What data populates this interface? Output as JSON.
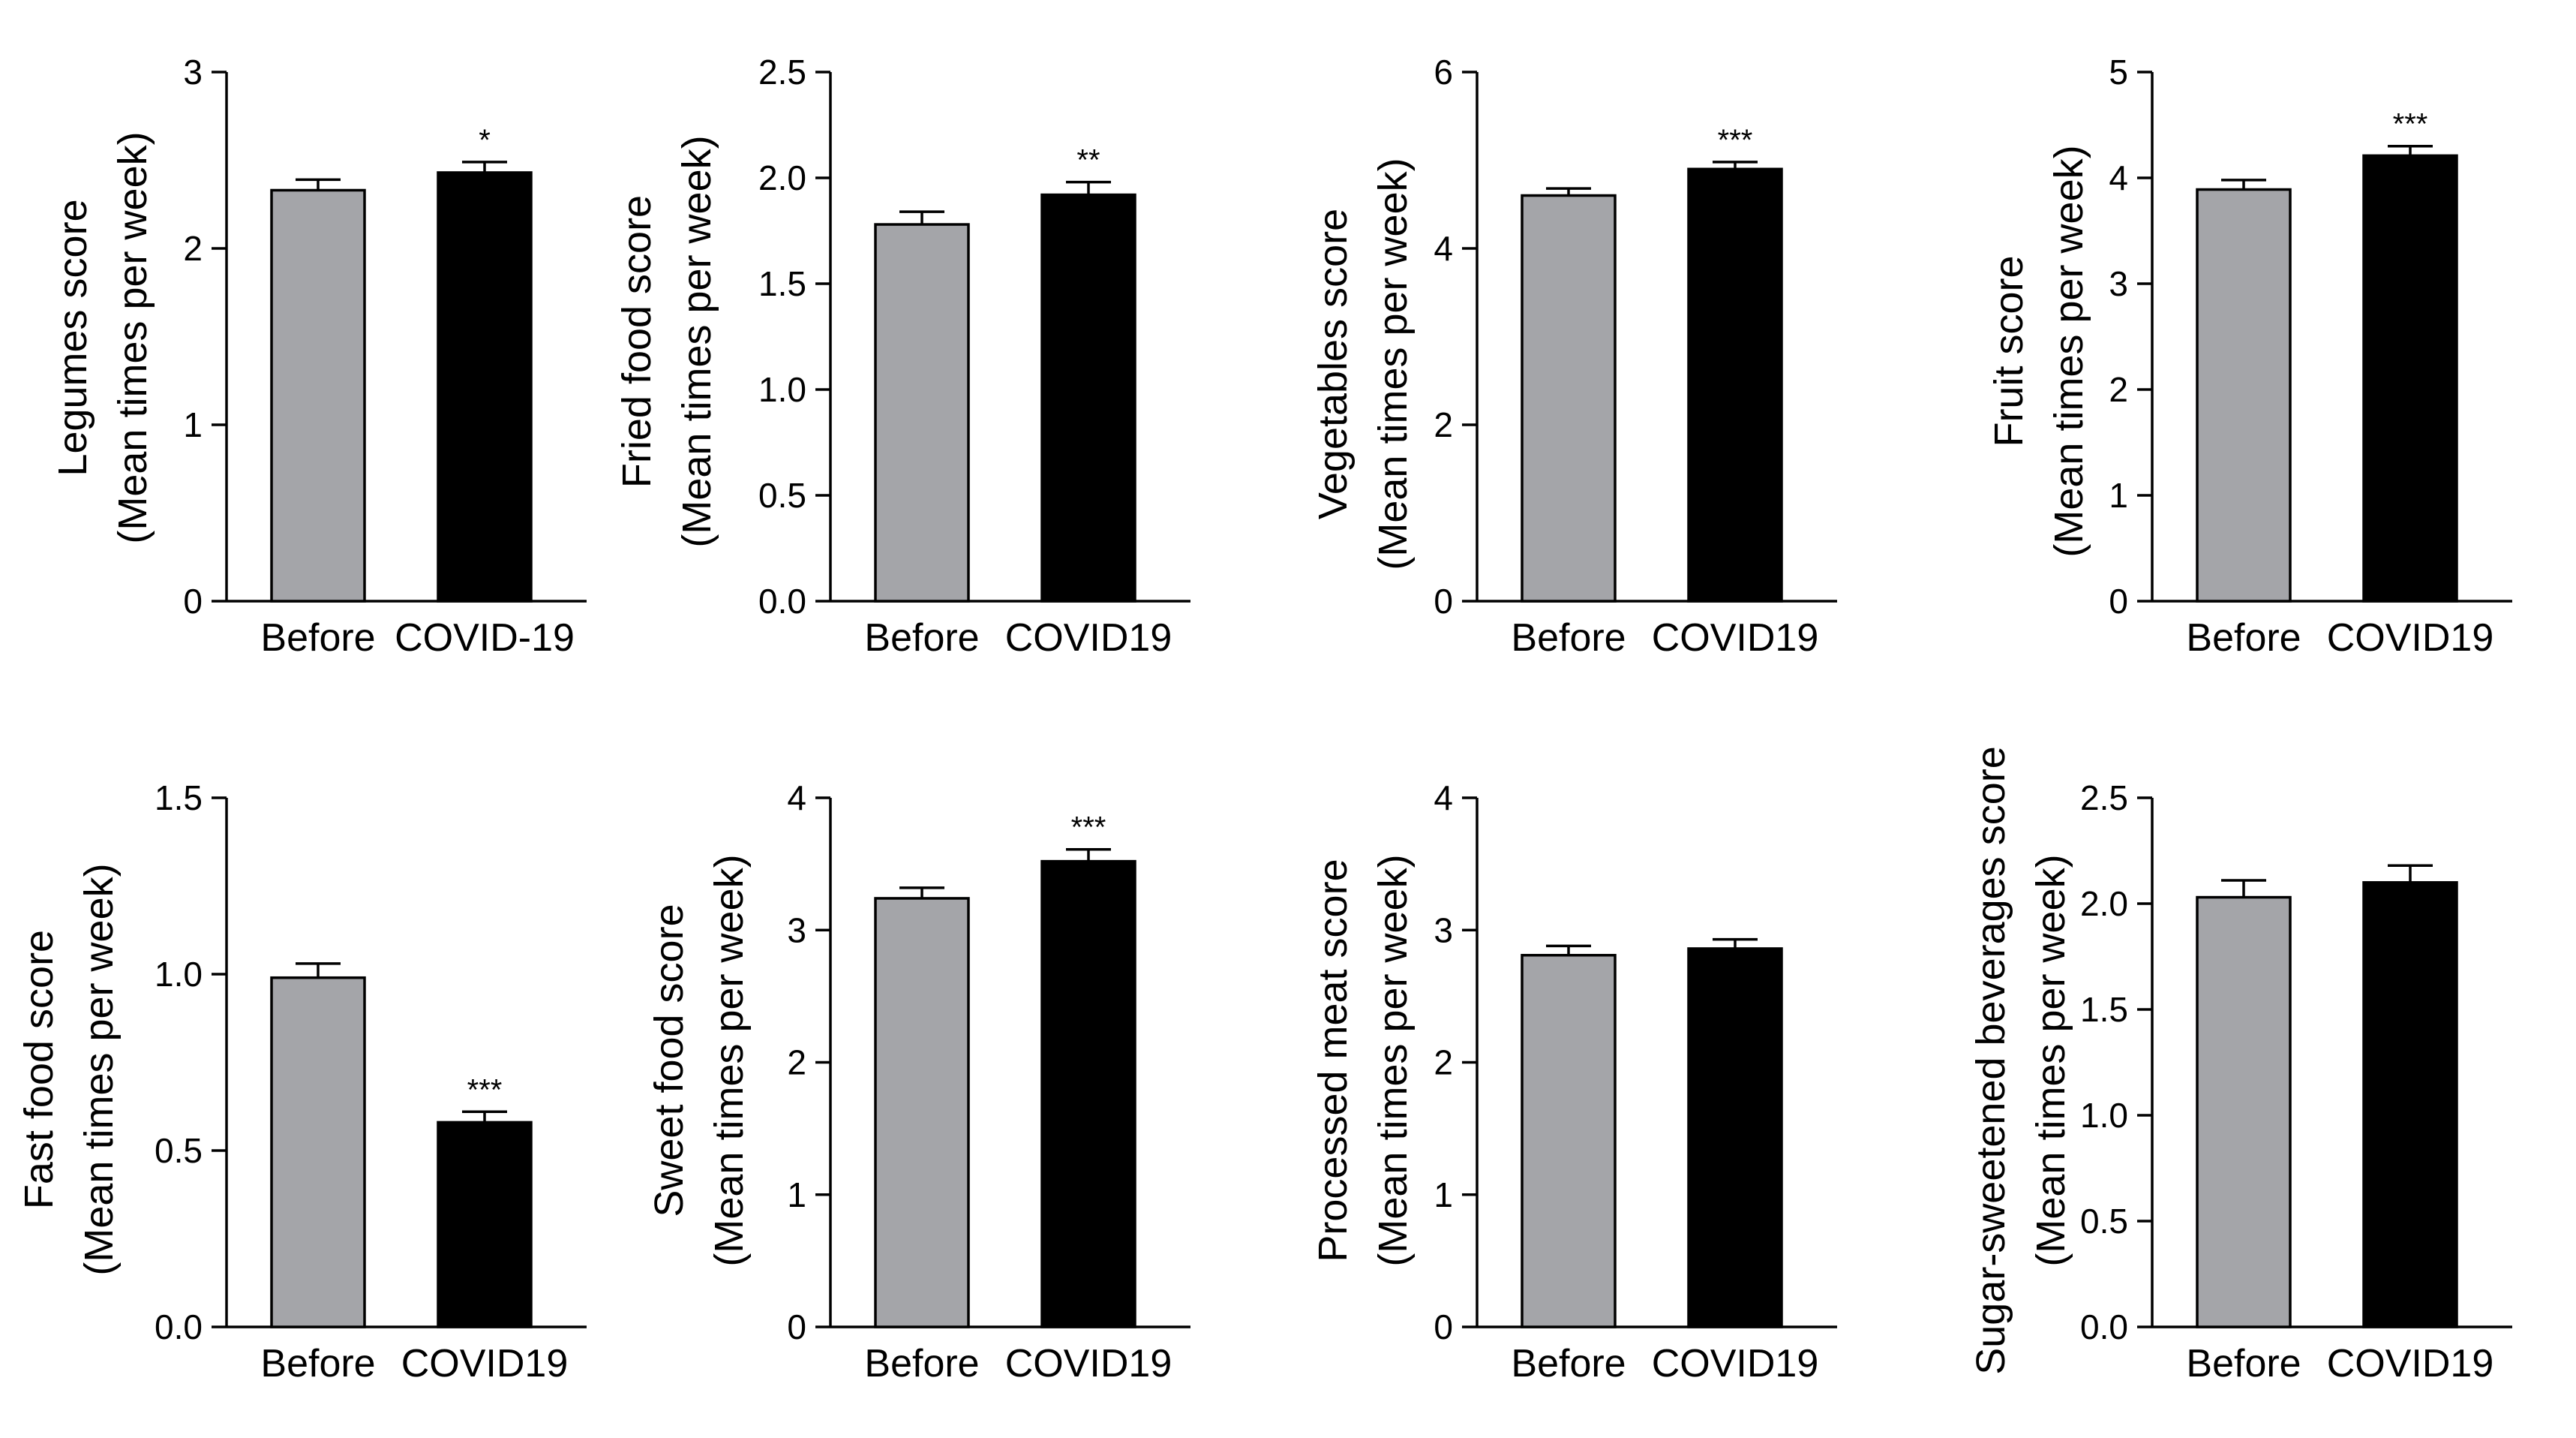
{
  "colors": {
    "before": "#a4a5a9",
    "covid": "#000000",
    "axis": "#000000"
  },
  "chart_data": [
    {
      "type": "bar",
      "ylabel_line1": "Legumes score",
      "ylabel_line2": "(Mean times per week)",
      "categories": [
        "Before",
        "COVID-19"
      ],
      "values": [
        2.33,
        2.43
      ],
      "errors": [
        0.06,
        0.06
      ],
      "significance": [
        "",
        "*"
      ],
      "ylim": [
        0,
        3
      ],
      "yticks": [
        0,
        1,
        2,
        3
      ],
      "ytick_labels": [
        "0",
        "1",
        "2",
        "3"
      ]
    },
    {
      "type": "bar",
      "ylabel_line1": "Fried food score",
      "ylabel_line2": "(Mean times per week)",
      "categories": [
        "Before",
        "COVID19"
      ],
      "values": [
        1.78,
        1.92
      ],
      "errors": [
        0.06,
        0.06
      ],
      "significance": [
        "",
        "**"
      ],
      "ylim": [
        0,
        2.5
      ],
      "yticks": [
        0,
        0.5,
        1.0,
        1.5,
        2.0,
        2.5
      ],
      "ytick_labels": [
        "0.0",
        "0.5",
        "1.0",
        "1.5",
        "2.0",
        "2.5"
      ]
    },
    {
      "type": "bar",
      "ylabel_line1": "Vegetables score",
      "ylabel_line2": "(Mean times per week)",
      "categories": [
        "Before",
        "COVID19"
      ],
      "values": [
        4.6,
        4.9
      ],
      "errors": [
        0.08,
        0.08
      ],
      "significance": [
        "",
        "***"
      ],
      "ylim": [
        0,
        6
      ],
      "yticks": [
        0,
        2,
        4,
        6
      ],
      "ytick_labels": [
        "0",
        "2",
        "4",
        "6"
      ]
    },
    {
      "type": "bar",
      "ylabel_line1": "Fruit score",
      "ylabel_line2": "(Mean times per week)",
      "categories": [
        "Before",
        "COVID19"
      ],
      "values": [
        3.89,
        4.21
      ],
      "errors": [
        0.09,
        0.09
      ],
      "significance": [
        "",
        "***"
      ],
      "ylim": [
        0,
        5
      ],
      "yticks": [
        0,
        1,
        2,
        3,
        4,
        5
      ],
      "ytick_labels": [
        "0",
        "1",
        "2",
        "3",
        "4",
        "5"
      ]
    },
    {
      "type": "bar",
      "ylabel_line1": "Fast food score",
      "ylabel_line2": "(Mean times per week)",
      "categories": [
        "Before",
        "COVID19"
      ],
      "values": [
        0.99,
        0.58
      ],
      "errors": [
        0.04,
        0.03
      ],
      "significance": [
        "",
        "***"
      ],
      "ylim": [
        0,
        1.5
      ],
      "yticks": [
        0,
        0.5,
        1.0,
        1.5
      ],
      "ytick_labels": [
        "0.0",
        "0.5",
        "1.0",
        "1.5"
      ]
    },
    {
      "type": "bar",
      "ylabel_line1": "Sweet food score",
      "ylabel_line2": "(Mean times per week)",
      "categories": [
        "Before",
        "COVID19"
      ],
      "values": [
        3.24,
        3.52
      ],
      "errors": [
        0.08,
        0.09
      ],
      "significance": [
        "",
        "***"
      ],
      "ylim": [
        0,
        4
      ],
      "yticks": [
        0,
        1,
        2,
        3,
        4
      ],
      "ytick_labels": [
        "0",
        "1",
        "2",
        "3",
        "4"
      ]
    },
    {
      "type": "bar",
      "ylabel_line1": "Processed meat score",
      "ylabel_line2": "(Mean times per week)",
      "categories": [
        "Before",
        "COVID19"
      ],
      "values": [
        2.81,
        2.86
      ],
      "errors": [
        0.07,
        0.07
      ],
      "significance": [
        "",
        ""
      ],
      "ylim": [
        0,
        4
      ],
      "yticks": [
        0,
        1,
        2,
        3,
        4
      ],
      "ytick_labels": [
        "0",
        "1",
        "2",
        "3",
        "4"
      ]
    },
    {
      "type": "bar",
      "ylabel_line1": "Sugar-sweetened beverages score",
      "ylabel_line2": "(Mean times per week)",
      "categories": [
        "Before",
        "COVID19"
      ],
      "values": [
        2.03,
        2.1
      ],
      "errors": [
        0.08,
        0.08
      ],
      "significance": [
        "",
        ""
      ],
      "ylim": [
        0,
        2.5
      ],
      "yticks": [
        0,
        0.5,
        1.0,
        1.5,
        2.0,
        2.5
      ],
      "ytick_labels": [
        "0.0",
        "0.5",
        "1.0",
        "1.5",
        "2.0",
        "2.5"
      ]
    }
  ]
}
